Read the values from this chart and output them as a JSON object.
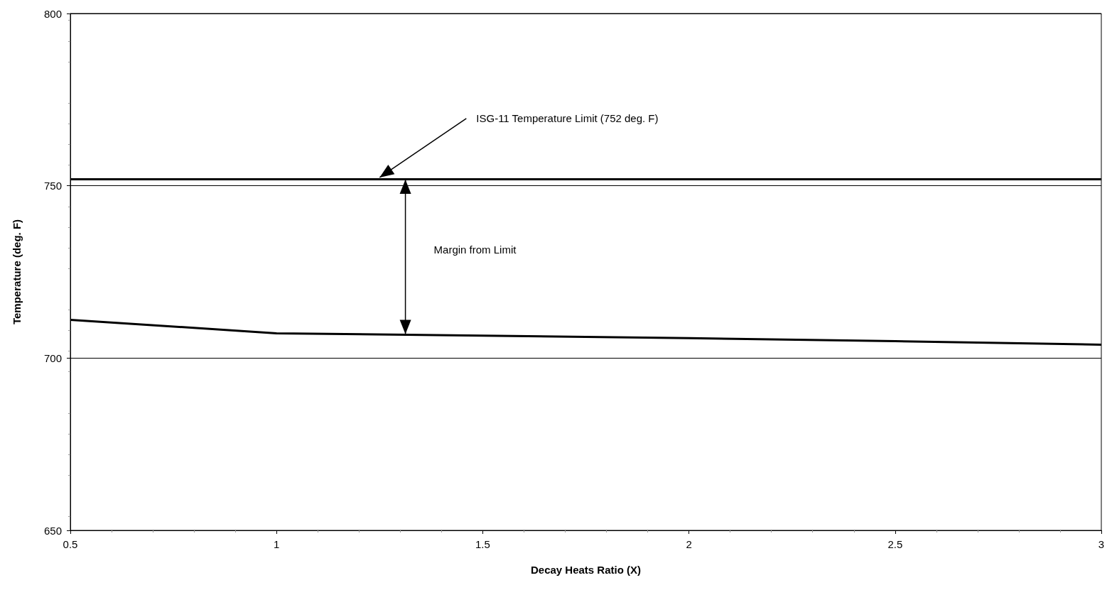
{
  "chart_data": {
    "type": "line",
    "xlabel": "Decay Heats Ratio (X)",
    "ylabel": "Temperature (deg. F)",
    "x": [
      0.5,
      1,
      1.5,
      2,
      2.5,
      3
    ],
    "series": [
      {
        "color": "#000000",
        "values": [
          711.1,
          707.2,
          706.5,
          705.8,
          704.9,
          703.9
        ]
      }
    ],
    "xlim": [
      0.5,
      3
    ],
    "xticks": [
      0.5,
      1,
      1.5,
      2,
      2.5,
      3
    ],
    "ylim": [
      650,
      800
    ],
    "yticks": [
      650,
      700,
      750,
      800
    ],
    "grid": "y",
    "marker": "none",
    "line_style": "solid",
    "ref_lines": [
      {
        "axis": "y",
        "value": 752,
        "color": "#000000"
      }
    ],
    "annotations": [
      {
        "text": "ISG-11 Temperature Limit (752 deg. F)",
        "x": 1.25,
        "y": 752
      },
      "Margin from Limit"
    ]
  }
}
